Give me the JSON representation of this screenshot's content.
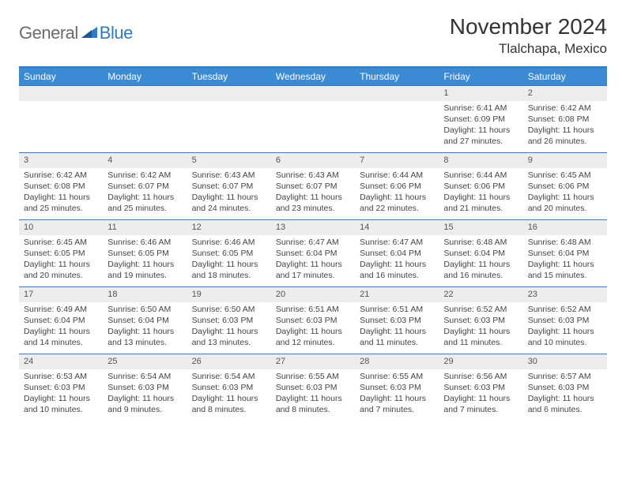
{
  "logo": {
    "general": "General",
    "blue": "Blue"
  },
  "title": "November 2024",
  "location": "Tlalchapa, Mexico",
  "colors": {
    "header_bg": "#3b8bd4",
    "border": "#2f7bc4",
    "daynum_bg": "#ededed",
    "text": "#333333"
  },
  "weekdays": [
    "Sunday",
    "Monday",
    "Tuesday",
    "Wednesday",
    "Thursday",
    "Friday",
    "Saturday"
  ],
  "weeks": [
    [
      null,
      null,
      null,
      null,
      null,
      {
        "n": "1",
        "sunrise": "Sunrise: 6:41 AM",
        "sunset": "Sunset: 6:09 PM",
        "daylight": "Daylight: 11 hours and 27 minutes."
      },
      {
        "n": "2",
        "sunrise": "Sunrise: 6:42 AM",
        "sunset": "Sunset: 6:08 PM",
        "daylight": "Daylight: 11 hours and 26 minutes."
      }
    ],
    [
      {
        "n": "3",
        "sunrise": "Sunrise: 6:42 AM",
        "sunset": "Sunset: 6:08 PM",
        "daylight": "Daylight: 11 hours and 25 minutes."
      },
      {
        "n": "4",
        "sunrise": "Sunrise: 6:42 AM",
        "sunset": "Sunset: 6:07 PM",
        "daylight": "Daylight: 11 hours and 25 minutes."
      },
      {
        "n": "5",
        "sunrise": "Sunrise: 6:43 AM",
        "sunset": "Sunset: 6:07 PM",
        "daylight": "Daylight: 11 hours and 24 minutes."
      },
      {
        "n": "6",
        "sunrise": "Sunrise: 6:43 AM",
        "sunset": "Sunset: 6:07 PM",
        "daylight": "Daylight: 11 hours and 23 minutes."
      },
      {
        "n": "7",
        "sunrise": "Sunrise: 6:44 AM",
        "sunset": "Sunset: 6:06 PM",
        "daylight": "Daylight: 11 hours and 22 minutes."
      },
      {
        "n": "8",
        "sunrise": "Sunrise: 6:44 AM",
        "sunset": "Sunset: 6:06 PM",
        "daylight": "Daylight: 11 hours and 21 minutes."
      },
      {
        "n": "9",
        "sunrise": "Sunrise: 6:45 AM",
        "sunset": "Sunset: 6:06 PM",
        "daylight": "Daylight: 11 hours and 20 minutes."
      }
    ],
    [
      {
        "n": "10",
        "sunrise": "Sunrise: 6:45 AM",
        "sunset": "Sunset: 6:05 PM",
        "daylight": "Daylight: 11 hours and 20 minutes."
      },
      {
        "n": "11",
        "sunrise": "Sunrise: 6:46 AM",
        "sunset": "Sunset: 6:05 PM",
        "daylight": "Daylight: 11 hours and 19 minutes."
      },
      {
        "n": "12",
        "sunrise": "Sunrise: 6:46 AM",
        "sunset": "Sunset: 6:05 PM",
        "daylight": "Daylight: 11 hours and 18 minutes."
      },
      {
        "n": "13",
        "sunrise": "Sunrise: 6:47 AM",
        "sunset": "Sunset: 6:04 PM",
        "daylight": "Daylight: 11 hours and 17 minutes."
      },
      {
        "n": "14",
        "sunrise": "Sunrise: 6:47 AM",
        "sunset": "Sunset: 6:04 PM",
        "daylight": "Daylight: 11 hours and 16 minutes."
      },
      {
        "n": "15",
        "sunrise": "Sunrise: 6:48 AM",
        "sunset": "Sunset: 6:04 PM",
        "daylight": "Daylight: 11 hours and 16 minutes."
      },
      {
        "n": "16",
        "sunrise": "Sunrise: 6:48 AM",
        "sunset": "Sunset: 6:04 PM",
        "daylight": "Daylight: 11 hours and 15 minutes."
      }
    ],
    [
      {
        "n": "17",
        "sunrise": "Sunrise: 6:49 AM",
        "sunset": "Sunset: 6:04 PM",
        "daylight": "Daylight: 11 hours and 14 minutes."
      },
      {
        "n": "18",
        "sunrise": "Sunrise: 6:50 AM",
        "sunset": "Sunset: 6:04 PM",
        "daylight": "Daylight: 11 hours and 13 minutes."
      },
      {
        "n": "19",
        "sunrise": "Sunrise: 6:50 AM",
        "sunset": "Sunset: 6:03 PM",
        "daylight": "Daylight: 11 hours and 13 minutes."
      },
      {
        "n": "20",
        "sunrise": "Sunrise: 6:51 AM",
        "sunset": "Sunset: 6:03 PM",
        "daylight": "Daylight: 11 hours and 12 minutes."
      },
      {
        "n": "21",
        "sunrise": "Sunrise: 6:51 AM",
        "sunset": "Sunset: 6:03 PM",
        "daylight": "Daylight: 11 hours and 11 minutes."
      },
      {
        "n": "22",
        "sunrise": "Sunrise: 6:52 AM",
        "sunset": "Sunset: 6:03 PM",
        "daylight": "Daylight: 11 hours and 11 minutes."
      },
      {
        "n": "23",
        "sunrise": "Sunrise: 6:52 AM",
        "sunset": "Sunset: 6:03 PM",
        "daylight": "Daylight: 11 hours and 10 minutes."
      }
    ],
    [
      {
        "n": "24",
        "sunrise": "Sunrise: 6:53 AM",
        "sunset": "Sunset: 6:03 PM",
        "daylight": "Daylight: 11 hours and 10 minutes."
      },
      {
        "n": "25",
        "sunrise": "Sunrise: 6:54 AM",
        "sunset": "Sunset: 6:03 PM",
        "daylight": "Daylight: 11 hours and 9 minutes."
      },
      {
        "n": "26",
        "sunrise": "Sunrise: 6:54 AM",
        "sunset": "Sunset: 6:03 PM",
        "daylight": "Daylight: 11 hours and 8 minutes."
      },
      {
        "n": "27",
        "sunrise": "Sunrise: 6:55 AM",
        "sunset": "Sunset: 6:03 PM",
        "daylight": "Daylight: 11 hours and 8 minutes."
      },
      {
        "n": "28",
        "sunrise": "Sunrise: 6:55 AM",
        "sunset": "Sunset: 6:03 PM",
        "daylight": "Daylight: 11 hours and 7 minutes."
      },
      {
        "n": "29",
        "sunrise": "Sunrise: 6:56 AM",
        "sunset": "Sunset: 6:03 PM",
        "daylight": "Daylight: 11 hours and 7 minutes."
      },
      {
        "n": "30",
        "sunrise": "Sunrise: 6:57 AM",
        "sunset": "Sunset: 6:03 PM",
        "daylight": "Daylight: 11 hours and 6 minutes."
      }
    ]
  ]
}
